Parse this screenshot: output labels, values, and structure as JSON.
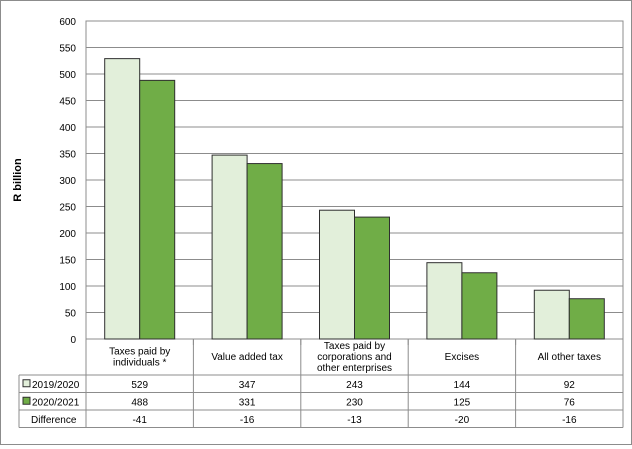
{
  "chart_data": {
    "type": "bar",
    "ylabel": "R billion",
    "ylim": [
      0,
      600
    ],
    "yticks": [
      0,
      50,
      100,
      150,
      200,
      250,
      300,
      350,
      400,
      450,
      500,
      550,
      600
    ],
    "grid": "horizontal",
    "categories": [
      [
        "Taxes paid by",
        "individuals *"
      ],
      [
        "Value added tax"
      ],
      [
        "Taxes paid by",
        "corporations and",
        "other enterprises"
      ],
      [
        "Excises"
      ],
      [
        "All other taxes"
      ]
    ],
    "series": [
      {
        "name": "2019/2020",
        "color": "#e2efda",
        "values": [
          529,
          347,
          243,
          144,
          92
        ]
      },
      {
        "name": "2020/2021",
        "color": "#70ad47",
        "values": [
          488,
          331,
          230,
          125,
          76
        ]
      }
    ],
    "table_rows": [
      {
        "label": "2019/2020",
        "values": [
          "529",
          "347",
          "243",
          "144",
          "92"
        ]
      },
      {
        "label": "2020/2021",
        "values": [
          "488",
          "331",
          "230",
          "125",
          "76"
        ]
      },
      {
        "label": "Difference",
        "values": [
          "-41",
          "-16",
          "-13",
          "-20",
          "-16"
        ]
      }
    ]
  }
}
